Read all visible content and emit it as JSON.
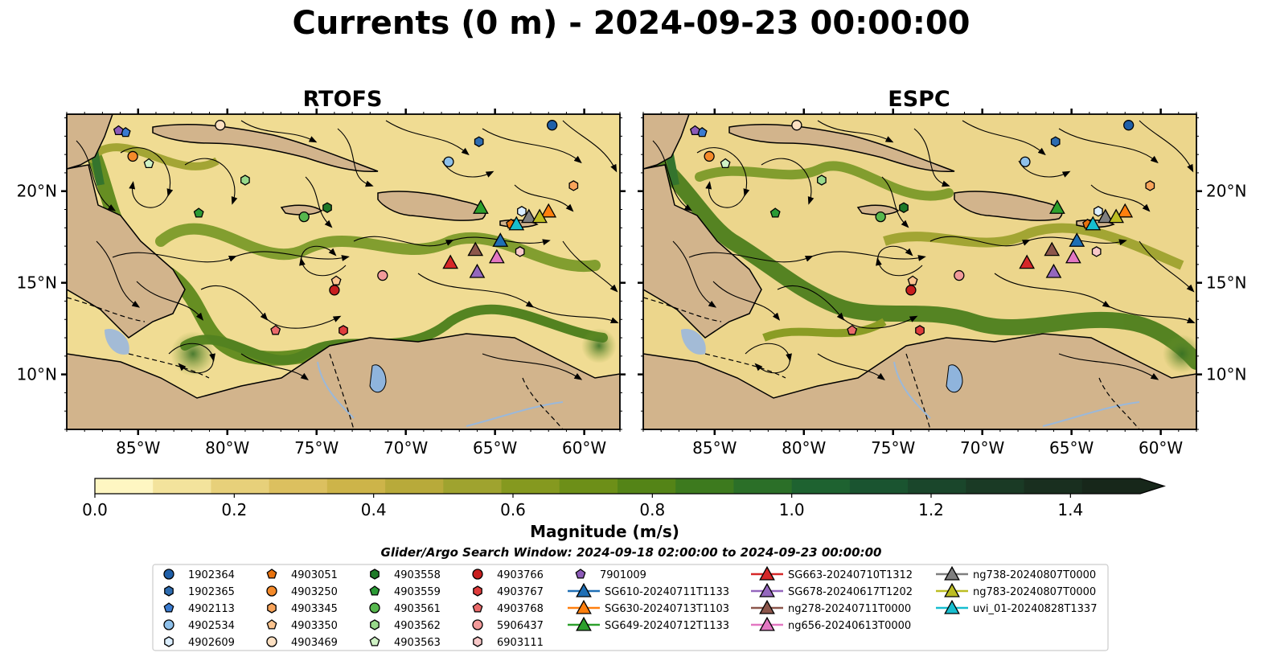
{
  "figure": {
    "title": "Currents (0 m) - 2024-09-23 00:00:00",
    "search_window": "Glider/Argo Search Window: 2024-09-18 02:00:00 to 2024-09-23 00:00:00"
  },
  "chart_data": [
    {
      "type": "heatmap",
      "title": "RTOFS",
      "xlim": [
        -89,
        -58
      ],
      "ylim": [
        7,
        24.2
      ],
      "x_ticks": [
        "85°W",
        "80°W",
        "75°W",
        "70°W",
        "65°W",
        "60°W"
      ],
      "y_ticks": [
        "20°N",
        "15°N",
        "10°N"
      ],
      "y_axis_side": "left"
    },
    {
      "type": "heatmap",
      "title": "ESPC",
      "xlim": [
        -89,
        -58
      ],
      "ylim": [
        7,
        24.2
      ],
      "x_ticks": [
        "85°W",
        "80°W",
        "75°W",
        "70°W",
        "65°W",
        "60°W"
      ],
      "y_ticks": [
        "20°N",
        "15°N",
        "10°N"
      ],
      "y_axis_side": "right"
    }
  ],
  "colorbar": {
    "label": "Magnitude (m/s)",
    "min": 0.0,
    "max": 1.5,
    "extend": "max",
    "tick_labels": [
      "0.0",
      "0.2",
      "0.4",
      "0.6",
      "0.8",
      "1.0",
      "1.2",
      "1.4"
    ],
    "colors": [
      "#fef6c2",
      "#f3e39c",
      "#e7d07a",
      "#dcc05f",
      "#cdb449",
      "#b8aa3a",
      "#9fa32f",
      "#85991f",
      "#6d8f18",
      "#548417",
      "#3d7a1e",
      "#2b6f28",
      "#1e6230",
      "#1a5430",
      "#1a462b",
      "#1a3a25",
      "#192f1f",
      "#17271a"
    ]
  },
  "legend": {
    "items": [
      {
        "label": "1902364",
        "marker": "circle",
        "color": "#1f5fa8"
      },
      {
        "label": "1902365",
        "marker": "hexagon",
        "color": "#2e6cb0"
      },
      {
        "label": "4902113",
        "marker": "pentagon",
        "color": "#3a7bd0"
      },
      {
        "label": "4902534",
        "marker": "circle",
        "color": "#8ec0ea"
      },
      {
        "label": "4902609",
        "marker": "hexagon",
        "color": "#dbeeff"
      },
      {
        "label": "4903051",
        "marker": "pentagon",
        "color": "#e8720e"
      },
      {
        "label": "4903250",
        "marker": "circle",
        "color": "#f48a2a"
      },
      {
        "label": "4903345",
        "marker": "hexagon",
        "color": "#f9a45a"
      },
      {
        "label": "4903350",
        "marker": "pentagon",
        "color": "#fbc48f"
      },
      {
        "label": "4903469",
        "marker": "circle",
        "color": "#fde0c2"
      },
      {
        "label": "4903558",
        "marker": "hexagon",
        "color": "#1f7a28"
      },
      {
        "label": "4903559",
        "marker": "pentagon",
        "color": "#2b9a35"
      },
      {
        "label": "4903561",
        "marker": "circle",
        "color": "#57b84e"
      },
      {
        "label": "4903562",
        "marker": "hexagon",
        "color": "#98d98a"
      },
      {
        "label": "4903563",
        "marker": "pentagon",
        "color": "#cff2c5"
      },
      {
        "label": "4903766",
        "marker": "circle",
        "color": "#c71e1e"
      },
      {
        "label": "4903767",
        "marker": "hexagon",
        "color": "#df3c3c"
      },
      {
        "label": "4903768",
        "marker": "pentagon",
        "color": "#ea6a6a"
      },
      {
        "label": "5906437",
        "marker": "circle",
        "color": "#f29a9a"
      },
      {
        "label": "6903111",
        "marker": "hexagon",
        "color": "#f8c8c8"
      },
      {
        "label": "7901009",
        "marker": "pentagon",
        "color": "#8c5bb8"
      },
      {
        "label": "SG610-20240711T1133",
        "marker": "triangle-line",
        "color": "#1f6fb5"
      },
      {
        "label": "SG630-20240713T1103",
        "marker": "triangle-line",
        "color": "#ff7f0e"
      },
      {
        "label": "SG649-20240712T1133",
        "marker": "triangle-line",
        "color": "#2ca02c"
      },
      {
        "label": "SG663-20240710T1312",
        "marker": "triangle-line",
        "color": "#d62728"
      },
      {
        "label": "SG678-20240617T1202",
        "marker": "triangle-line",
        "color": "#9467bd"
      },
      {
        "label": "ng278-20240711T0000",
        "marker": "triangle-line",
        "color": "#8c564b"
      },
      {
        "label": "ng656-20240613T0000",
        "marker": "triangle-line",
        "color": "#e377c2"
      },
      {
        "label": "ng738-20240807T0000",
        "marker": "triangle-line",
        "color": "#7f7f7f"
      },
      {
        "label": "ng783-20240807T0000",
        "marker": "triangle-line",
        "color": "#bcbd22"
      },
      {
        "label": "uvi_01-20240828T1337",
        "marker": "triangle-line",
        "color": "#17becf"
      }
    ]
  },
  "observations": [
    {
      "id": "1902364",
      "lon": -61.8,
      "lat": 23.6
    },
    {
      "id": "1902365",
      "lon": -65.9,
      "lat": 22.7
    },
    {
      "id": "4902113",
      "lon": -85.7,
      "lat": 23.2
    },
    {
      "id": "4902534",
      "lon": -67.6,
      "lat": 21.6
    },
    {
      "id": "4902609",
      "lon": -63.5,
      "lat": 18.9
    },
    {
      "id": "4903051",
      "lon": -64.1,
      "lat": 18.2
    },
    {
      "id": "4903250",
      "lon": -85.3,
      "lat": 21.9
    },
    {
      "id": "4903345",
      "lon": -60.6,
      "lat": 20.3
    },
    {
      "id": "4903350",
      "lon": -73.9,
      "lat": 15.1
    },
    {
      "id": "4903469",
      "lon": -80.4,
      "lat": 23.6
    },
    {
      "id": "4903558",
      "lon": -74.4,
      "lat": 19.1
    },
    {
      "id": "4903559",
      "lon": -81.6,
      "lat": 18.8
    },
    {
      "id": "4903561",
      "lon": -75.7,
      "lat": 18.6
    },
    {
      "id": "4903562",
      "lon": -79.0,
      "lat": 20.6
    },
    {
      "id": "4903563",
      "lon": -84.4,
      "lat": 21.5
    },
    {
      "id": "4903766",
      "lon": -74.0,
      "lat": 14.6
    },
    {
      "id": "4903767",
      "lon": -73.5,
      "lat": 12.4
    },
    {
      "id": "4903768",
      "lon": -77.3,
      "lat": 12.4
    },
    {
      "id": "5906437",
      "lon": -71.3,
      "lat": 15.4
    },
    {
      "id": "6903111",
      "lon": -63.6,
      "lat": 16.7
    },
    {
      "id": "7901009",
      "lon": -86.1,
      "lat": 23.3
    },
    {
      "id": "SG610-20240711T1133",
      "lon": -64.7,
      "lat": 17.3
    },
    {
      "id": "SG630-20240713T1103",
      "lon": -62.0,
      "lat": 18.9
    },
    {
      "id": "SG649-20240712T1133",
      "lon": -65.8,
      "lat": 19.1
    },
    {
      "id": "SG663-20240710T1312",
      "lon": -67.5,
      "lat": 16.1
    },
    {
      "id": "SG678-20240617T1202",
      "lon": -66.0,
      "lat": 15.6
    },
    {
      "id": "ng278-20240711T0000",
      "lon": -66.1,
      "lat": 16.8
    },
    {
      "id": "ng656-20240613T0000",
      "lon": -64.9,
      "lat": 16.4
    },
    {
      "id": "ng738-20240807T0000",
      "lon": -63.1,
      "lat": 18.6
    },
    {
      "id": "ng783-20240807T0000",
      "lon": -62.5,
      "lat": 18.6
    },
    {
      "id": "uvi_01-20240828T1337",
      "lon": -63.8,
      "lat": 18.2
    }
  ]
}
